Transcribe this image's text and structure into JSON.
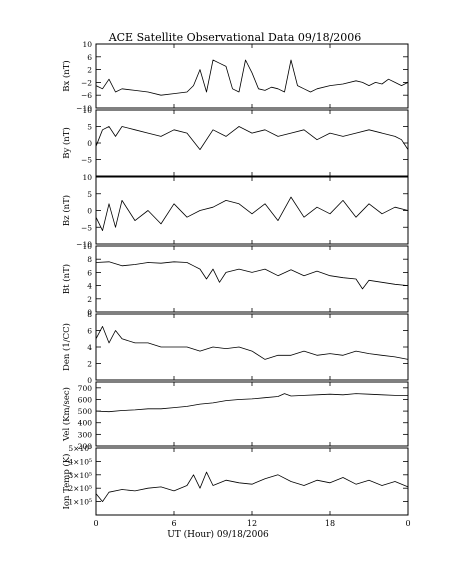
{
  "chart_data": {
    "type": "line",
    "title": "ACE Satellite Observational Data   09/18/2006",
    "xlabel": "UT (Hour)  09/18/2006",
    "x_tick_labels": [
      "0",
      "6",
      "12",
      "18",
      "0"
    ],
    "x_range_hours": [
      0,
      24
    ],
    "panels": [
      {
        "key": "bx",
        "ylabel": "Bx (nT)",
        "ylim": [
          -10,
          10
        ],
        "ticks": [
          -10,
          -6,
          -2,
          2,
          6,
          10
        ],
        "tick_labels": [
          "−10",
          "−6",
          "−2",
          "2",
          "6",
          "10"
        ],
        "x": [
          0,
          0.5,
          1,
          1.5,
          2,
          3,
          4,
          5,
          6,
          7,
          7.5,
          8,
          8.5,
          9,
          9.5,
          10,
          10.5,
          11,
          11.5,
          12,
          12.5,
          13,
          13.5,
          14,
          14.5,
          15,
          15.5,
          16,
          16.5,
          17,
          18,
          19,
          20,
          20.5,
          21,
          21.5,
          22,
          22.5,
          23,
          23.5,
          24
        ],
        "values": [
          -3,
          -4,
          -1,
          -5,
          -4,
          -4.5,
          -5,
          -6,
          -5.5,
          -5,
          -3,
          2,
          -5,
          5,
          4,
          3,
          -4,
          -5,
          5,
          1,
          -4,
          -4.5,
          -3.5,
          -4,
          -5,
          5,
          -3,
          -4,
          -5,
          -4,
          -3,
          -2.5,
          -1.5,
          -2,
          -3,
          -2,
          -2.5,
          -1,
          -2,
          -3,
          -2
        ]
      },
      {
        "key": "by",
        "ylabel": "By (nT)",
        "ylim": [
          -10,
          10
        ],
        "ticks": [
          -5,
          0,
          5,
          10
        ],
        "tick_labels": [
          "−5",
          "0",
          "5",
          "10"
        ],
        "x": [
          0,
          0.5,
          1,
          1.5,
          2,
          3,
          4,
          5,
          6,
          7,
          8,
          9,
          10,
          11,
          12,
          13,
          14,
          15,
          16,
          17,
          18,
          19,
          20,
          21,
          22,
          23,
          23.5,
          24
        ],
        "values": [
          -1,
          4,
          5,
          2,
          5,
          4,
          3,
          2,
          4,
          3,
          -2,
          4,
          2,
          5,
          3,
          4,
          2,
          3,
          4,
          1,
          3,
          2,
          3,
          4,
          3,
          2,
          1,
          -2
        ]
      },
      {
        "key": "bz",
        "ylabel": "Bz (nT)",
        "ylim": [
          -10,
          10
        ],
        "ticks": [
          -10,
          -5,
          0,
          5,
          10
        ],
        "tick_labels": [
          "−10",
          "−5",
          "0",
          "5",
          "10"
        ],
        "x": [
          0,
          0.5,
          1,
          1.5,
          2,
          3,
          4,
          5,
          6,
          7,
          8,
          9,
          10,
          11,
          12,
          13,
          14,
          15,
          16,
          17,
          18,
          19,
          20,
          21,
          22,
          23,
          24
        ],
        "values": [
          -2,
          -6,
          2,
          -5,
          3,
          -3,
          0,
          -4,
          2,
          -2,
          0,
          1,
          3,
          2,
          -1,
          2,
          -3,
          4,
          -2,
          1,
          -1,
          3,
          -2,
          2,
          -1,
          1,
          0
        ]
      },
      {
        "key": "bt",
        "ylabel": "Bt (nT)",
        "ylim": [
          0,
          10
        ],
        "ticks": [
          0,
          2,
          4,
          6,
          8,
          10
        ],
        "tick_labels": [
          "0",
          "2",
          "4",
          "6",
          "8",
          "10"
        ],
        "x": [
          0,
          1,
          2,
          3,
          4,
          5,
          6,
          7,
          7.5,
          8,
          8.5,
          9,
          9.5,
          10,
          11,
          12,
          13,
          14,
          15,
          16,
          17,
          18,
          19,
          20,
          20.5,
          21,
          22,
          23,
          24
        ],
        "values": [
          7.5,
          7.6,
          7,
          7.2,
          7.5,
          7.4,
          7.6,
          7.5,
          7,
          6.5,
          5,
          6.5,
          4.5,
          6,
          6.5,
          6,
          6.5,
          5.5,
          6.4,
          5.5,
          6.2,
          5.5,
          5.2,
          5,
          3.5,
          4.8,
          4.5,
          4.2,
          4
        ]
      },
      {
        "key": "den",
        "ylabel": "Den (1/CC)",
        "ylim": [
          0,
          8
        ],
        "ticks": [
          0,
          2,
          4,
          6,
          8
        ],
        "tick_labels": [
          "0",
          "2",
          "4",
          "6",
          "8"
        ],
        "x": [
          0,
          0.5,
          1,
          1.5,
          2,
          3,
          4,
          5,
          6,
          7,
          8,
          9,
          10,
          11,
          12,
          13,
          14,
          15,
          16,
          17,
          18,
          19,
          20,
          21,
          22,
          23,
          24
        ],
        "values": [
          5,
          6.5,
          4.5,
          6,
          5,
          4.5,
          4.5,
          4,
          4,
          4,
          3.5,
          4,
          3.8,
          4,
          3.5,
          2.5,
          3,
          3,
          3.5,
          3,
          3.2,
          3,
          3.5,
          3.2,
          3,
          2.8,
          2.5
        ]
      },
      {
        "key": "vel",
        "ylabel": "Vel (Km/sec)",
        "ylim": [
          200,
          750
        ],
        "ticks": [
          200,
          300,
          400,
          500,
          600,
          700
        ],
        "tick_labels": [
          "200",
          "300",
          "400",
          "500",
          "600",
          "700"
        ],
        "x": [
          0,
          1,
          2,
          3,
          4,
          5,
          6,
          7,
          8,
          9,
          10,
          11,
          12,
          13,
          14,
          14.5,
          15,
          16,
          17,
          18,
          19,
          20,
          21,
          22,
          23,
          24
        ],
        "values": [
          500,
          495,
          505,
          510,
          520,
          520,
          530,
          540,
          560,
          570,
          590,
          600,
          605,
          615,
          625,
          650,
          630,
          635,
          640,
          645,
          640,
          650,
          645,
          640,
          635,
          635
        ]
      },
      {
        "key": "temp",
        "ylabel": "Ion Temp (K)",
        "ylim": [
          0,
          500000
        ],
        "ticks": [
          100000,
          200000,
          300000,
          400000,
          500000
        ],
        "tick_labels": [
          "1×10⁵",
          "2×10⁵",
          "3×10⁵",
          "4×10⁵",
          "5×10⁵"
        ],
        "x": [
          0,
          0.5,
          1,
          2,
          3,
          4,
          5,
          6,
          7,
          7.5,
          8,
          8.5,
          9,
          10,
          11,
          12,
          13,
          14,
          15,
          16,
          17,
          18,
          19,
          20,
          21,
          22,
          23,
          24
        ],
        "values": [
          160000,
          100000,
          170000,
          190000,
          180000,
          200000,
          210000,
          180000,
          220000,
          300000,
          200000,
          320000,
          220000,
          260000,
          240000,
          230000,
          270000,
          300000,
          250000,
          220000,
          260000,
          240000,
          280000,
          230000,
          260000,
          220000,
          250000,
          210000
        ]
      }
    ]
  }
}
